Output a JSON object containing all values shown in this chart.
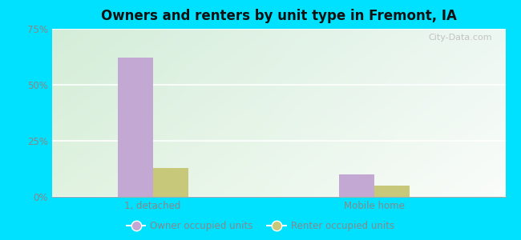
{
  "title": "Owners and renters by unit type in Fremont, IA",
  "categories": [
    "1, detached",
    "Mobile home"
  ],
  "owner_values": [
    62,
    10
  ],
  "renter_values": [
    13,
    5
  ],
  "owner_color": "#c4a8d4",
  "renter_color": "#c8c87a",
  "ylim": [
    0,
    75
  ],
  "yticks": [
    0,
    25,
    50,
    75
  ],
  "ytick_labels": [
    "0%",
    "25%",
    "50%",
    "75%"
  ],
  "background_outer": "#00e0ff",
  "legend_labels": [
    "Owner occupied units",
    "Renter occupied units"
  ],
  "bar_width": 0.35,
  "group_positions": [
    1.0,
    3.2
  ],
  "watermark": "City-Data.com",
  "xlim": [
    0.0,
    4.5
  ]
}
